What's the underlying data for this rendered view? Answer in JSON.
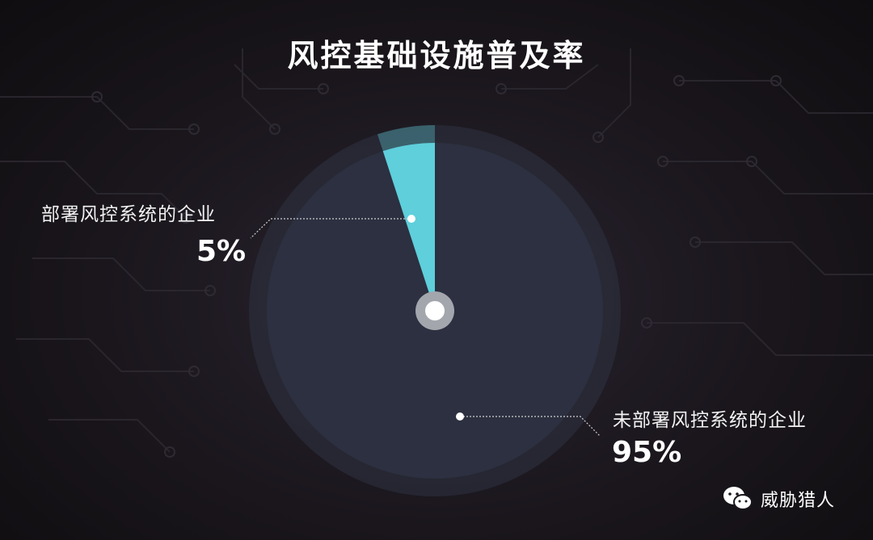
{
  "chart_data": {
    "type": "pie",
    "title": "风控基础设施普及率",
    "slices": [
      {
        "label": "部署风控系统的企业",
        "value": 5,
        "display": "5%",
        "color": "#5ecfdb"
      },
      {
        "label": "未部署风控系统的企业",
        "value": 95,
        "display": "95%",
        "color": "#2c3040"
      }
    ]
  },
  "brand": {
    "name": "威胁猎人",
    "icon": "wechat-icon"
  },
  "colors": {
    "accent": "#5ecfdb",
    "pie_main": "#2c3040",
    "background": "#1a161c"
  }
}
